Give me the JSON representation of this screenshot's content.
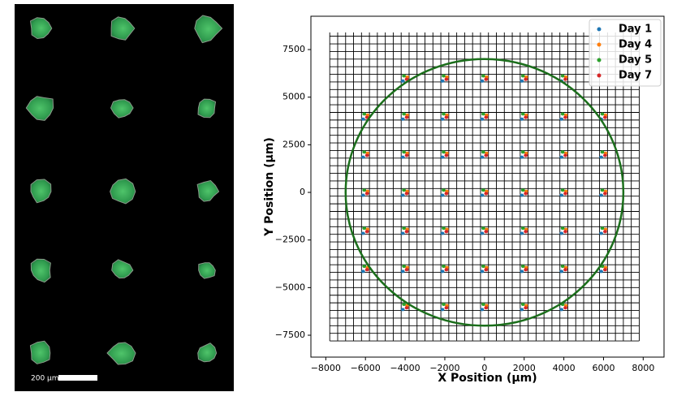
{
  "image_panel": {
    "scale_bar_label": "200 µm"
  },
  "chart_data": {
    "type": "scatter",
    "xlabel": "X Position (µm)",
    "ylabel": "Y Position (µm)",
    "xlim": [
      -8750,
      9050
    ],
    "ylim": [
      -8650,
      9250
    ],
    "xticks": [
      {
        "value": -8000,
        "label": "−8000"
      },
      {
        "value": -6000,
        "label": "−6000"
      },
      {
        "value": -4000,
        "label": "−4000"
      },
      {
        "value": -2000,
        "label": "−2000"
      },
      0,
      2000,
      4000,
      6000,
      8000
    ],
    "yticks": [
      {
        "value": -7500,
        "label": "−7500"
      },
      {
        "value": -5000,
        "label": "−5000"
      },
      {
        "value": -2500,
        "label": "−2500"
      },
      0,
      2500,
      5000,
      7500
    ],
    "legend": "upper right",
    "circle": {
      "radius": 7000,
      "color": "#1b6e1b"
    },
    "series": [
      {
        "name": "Day 1",
        "color": "#1f77b4",
        "x": [
          -4120,
          -2120,
          -120,
          1880,
          3880,
          -6120,
          -4120,
          -2120,
          -120,
          1880,
          3880,
          5880,
          -6120,
          -4120,
          -2120,
          -120,
          1880,
          3880,
          5880,
          -6120,
          -4120,
          -2120,
          -120,
          1880,
          3880,
          5880,
          -6120,
          -4120,
          -2120,
          -120,
          1880,
          3880,
          5880,
          -6120,
          -4120,
          -2120,
          -120,
          1880,
          3880,
          5880,
          -4120,
          -2120,
          -120,
          1880,
          3880
        ],
        "y": [
          5850,
          5850,
          5850,
          5850,
          5850,
          3850,
          3850,
          3850,
          3850,
          3850,
          3850,
          3850,
          1850,
          1850,
          1850,
          1850,
          1850,
          1850,
          1850,
          -150,
          -150,
          -150,
          -150,
          -150,
          -150,
          -150,
          -2150,
          -2150,
          -2150,
          -2150,
          -2150,
          -2150,
          -2150,
          -4150,
          -4150,
          -4150,
          -4150,
          -4150,
          -4150,
          -4150,
          -6150,
          -6150,
          -6150,
          -6150,
          -6150
        ]
      },
      {
        "name": "Day 4",
        "color": "#ff7f0e",
        "x": [
          -3900,
          -1900,
          100,
          2100,
          4100,
          -5900,
          -3900,
          -1900,
          100,
          2100,
          4100,
          6100,
          -5900,
          -3900,
          -1900,
          100,
          2100,
          4100,
          6100,
          -5900,
          -3900,
          -1900,
          100,
          2100,
          4100,
          6100,
          -5900,
          -3900,
          -1900,
          100,
          2100,
          4100,
          6100,
          -5900,
          -3900,
          -1900,
          100,
          2100,
          4100,
          6100,
          -3900,
          -1900,
          100,
          2100,
          4100
        ],
        "y": [
          6060,
          6060,
          6060,
          6060,
          6060,
          4060,
          4060,
          4060,
          4060,
          4060,
          4060,
          4060,
          2060,
          2060,
          2060,
          2060,
          2060,
          2060,
          2060,
          60,
          60,
          60,
          60,
          60,
          60,
          60,
          -1940,
          -1940,
          -1940,
          -1940,
          -1940,
          -1940,
          -1940,
          -3940,
          -3940,
          -3940,
          -3940,
          -3940,
          -3940,
          -3940,
          -5940,
          -5940,
          -5940,
          -5940,
          -5940
        ]
      },
      {
        "name": "Day 5",
        "color": "#2ca02c",
        "x": [
          -4060,
          -2060,
          -60,
          1940,
          3940,
          -6060,
          -4060,
          -2060,
          -60,
          1940,
          3940,
          5940,
          -6060,
          -4060,
          -2060,
          -60,
          1940,
          3940,
          5940,
          -6060,
          -4060,
          -2060,
          -60,
          1940,
          3940,
          5940,
          -6060,
          -4060,
          -2060,
          -60,
          1940,
          3940,
          5940,
          -6060,
          -4060,
          -2060,
          -60,
          1940,
          3940,
          5940,
          -4060,
          -2060,
          -60,
          1940,
          3940
        ],
        "y": [
          6120,
          6120,
          6120,
          6120,
          6120,
          4120,
          4120,
          4120,
          4120,
          4120,
          4120,
          4120,
          2120,
          2120,
          2120,
          2120,
          2120,
          2120,
          2120,
          120,
          120,
          120,
          120,
          120,
          120,
          120,
          -1880,
          -1880,
          -1880,
          -1880,
          -1880,
          -1880,
          -1880,
          -3880,
          -3880,
          -3880,
          -3880,
          -3880,
          -3880,
          -3880,
          -5880,
          -5880,
          -5880,
          -5880,
          -5880
        ]
      },
      {
        "name": "Day 7",
        "color": "#d62728",
        "x": [
          -3920,
          -1920,
          80,
          2080,
          4080,
          -5920,
          -3920,
          -1920,
          80,
          2080,
          4080,
          6080,
          -5920,
          -3920,
          -1920,
          80,
          2080,
          4080,
          6080,
          -5920,
          -3920,
          -1920,
          80,
          2080,
          4080,
          6080,
          -5920,
          -3920,
          -1920,
          80,
          2080,
          4080,
          6080,
          -5920,
          -3920,
          -1920,
          80,
          2080,
          4080,
          6080,
          -3920,
          -1920,
          80,
          2080,
          4080
        ],
        "y": [
          5940,
          5940,
          5940,
          5940,
          5940,
          3940,
          3940,
          3940,
          3940,
          3940,
          3940,
          3940,
          1940,
          1940,
          1940,
          1940,
          1940,
          1940,
          1940,
          -60,
          -60,
          -60,
          -60,
          -60,
          -60,
          -60,
          -2060,
          -2060,
          -2060,
          -2060,
          -2060,
          -2060,
          -2060,
          -4060,
          -4060,
          -4060,
          -4060,
          -4060,
          -4060,
          -4060,
          -6060,
          -6060,
          -6060,
          -6060,
          -6060
        ]
      }
    ]
  }
}
